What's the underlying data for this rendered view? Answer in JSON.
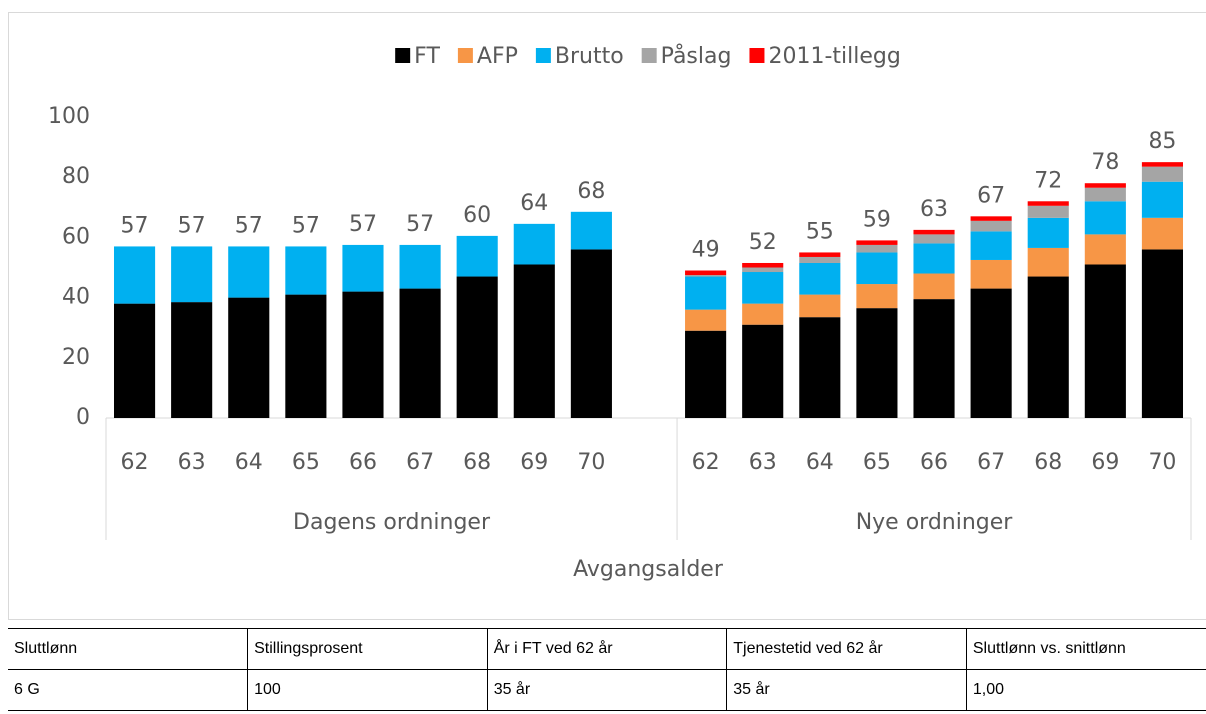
{
  "chart_data": {
    "type": "stacked-bar",
    "groups": [
      {
        "name": "Dagens ordninger",
        "categories": [
          "62",
          "63",
          "64",
          "65",
          "66",
          "67",
          "68",
          "69",
          "70"
        ]
      },
      {
        "name": "Nye ordninger",
        "categories": [
          "62",
          "63",
          "64",
          "65",
          "66",
          "67",
          "68",
          "69",
          "70"
        ]
      }
    ],
    "series": [
      {
        "name": "FT",
        "color": "#000000",
        "values": [
          [
            38,
            38.5,
            40,
            41,
            42,
            43,
            47,
            51,
            56
          ],
          [
            29,
            31,
            33.5,
            36.5,
            39.5,
            43,
            47,
            51,
            56
          ]
        ]
      },
      {
        "name": "AFP",
        "color": "#f79646",
        "values": [
          [
            0,
            0,
            0,
            0,
            0,
            0,
            0,
            0,
            0
          ],
          [
            7,
            7,
            7.5,
            8,
            8.5,
            9.5,
            9.5,
            10,
            10.5
          ]
        ]
      },
      {
        "name": "Brutto",
        "color": "#00b0f0",
        "values": [
          [
            19,
            18.5,
            17,
            16,
            15.5,
            14.5,
            13.5,
            13.5,
            12.5
          ],
          [
            11,
            10.5,
            10.5,
            10.5,
            10,
            9.5,
            10,
            11,
            12
          ]
        ]
      },
      {
        "name": "Påslag",
        "color": "#a5a5a5",
        "values": [
          [
            0,
            0,
            0,
            0,
            0,
            0,
            0,
            0,
            0
          ],
          [
            0.5,
            1.5,
            2,
            2.5,
            3,
            3.5,
            4,
            4.5,
            5
          ]
        ]
      },
      {
        "name": "2011-tillegg",
        "color": "#ff0000",
        "values": [
          [
            0,
            0,
            0,
            0,
            0,
            0,
            0,
            0,
            0
          ],
          [
            1.5,
            1.5,
            1.5,
            1.5,
            1.5,
            1.5,
            1.5,
            1.5,
            1.5
          ]
        ]
      }
    ],
    "totals": [
      [
        57,
        57,
        57,
        57,
        57,
        57,
        60,
        64,
        68
      ],
      [
        49,
        52,
        55,
        59,
        63,
        67,
        72,
        78,
        85
      ]
    ],
    "x_label": "Avgangsalder",
    "ylim": [
      0,
      100
    ],
    "yticks": [
      0,
      20,
      40,
      60,
      80,
      100
    ],
    "grid": false,
    "legend": "top"
  },
  "table": {
    "rows": [
      [
        "Sluttlønn",
        "Stillingsprosent",
        "År i FT ved 62 år",
        "Tjenestetid ved 62 år",
        "Sluttlønn vs. snittlønn"
      ],
      [
        "6 G",
        "100",
        "35 år",
        "35 år",
        "1,00"
      ]
    ]
  }
}
